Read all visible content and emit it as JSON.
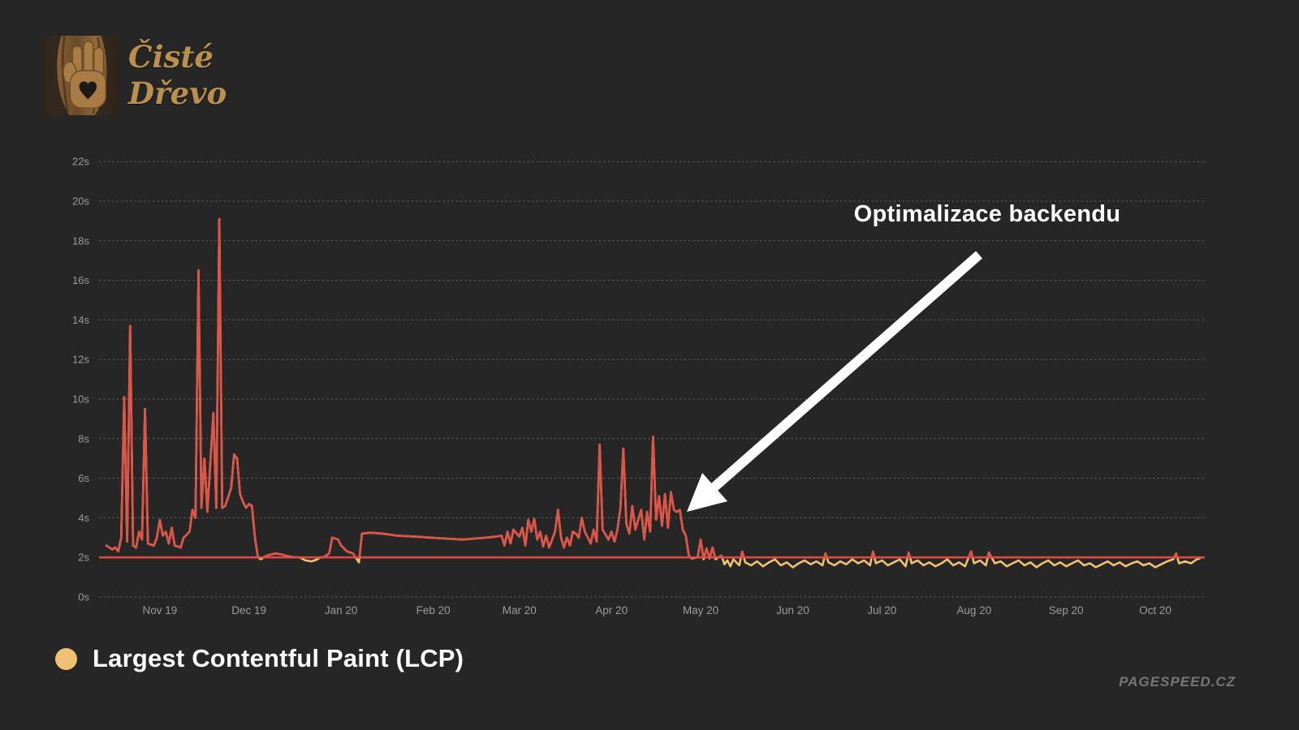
{
  "page": {
    "background": "#262626"
  },
  "logo": {
    "brand_line1": "Čisté",
    "brand_line2": "Dřevo"
  },
  "annotation": {
    "text": "Optimalizace backendu"
  },
  "legend": {
    "label": "Largest Contentful Paint (LCP)",
    "marker_color": "#f0c173"
  },
  "watermark": {
    "text": "PAGESPEED.CZ"
  },
  "chart_data": {
    "type": "line",
    "series_name": "Largest Contentful Paint (LCP)",
    "unit": "seconds",
    "ylim": [
      0,
      23
    ],
    "y_tick_values": [
      0,
      2,
      4,
      6,
      8,
      10,
      12,
      14,
      16,
      18,
      20,
      22
    ],
    "y_tick_labels": [
      "0s",
      "2s",
      "4s",
      "6s",
      "8s",
      "10s",
      "12s",
      "14s",
      "16s",
      "18s",
      "20s",
      "22s"
    ],
    "x_tick_labels": [
      "Nov 19",
      "Dec 19",
      "Jan 20",
      "Feb 20",
      "Mar 20",
      "Apr 20",
      "May 20",
      "Jun 20",
      "Jul 20",
      "Aug 20",
      "Sep 20",
      "Oct 20"
    ],
    "x_tick_days": [
      18,
      48,
      79,
      110,
      139,
      170,
      200,
      231,
      261,
      292,
      323,
      353
    ],
    "start_date": "2019-10-14",
    "end_date": "2020-10-16",
    "grid": "dotted-horizontal",
    "legend_position": "bottom-left",
    "threshold": {
      "value": 2,
      "color": "#e0483c"
    },
    "colors": {
      "above_threshold": "#df5348",
      "below_threshold": "#f0c173",
      "grid": "#9a9a9a",
      "tick_text": "#9b9b9b"
    },
    "points_format": "[days_since_start_date, seconds]",
    "points": [
      [
        0,
        2.6
      ],
      [
        2,
        2.4
      ],
      [
        3,
        2.5
      ],
      [
        4,
        2.3
      ],
      [
        5,
        3.0
      ],
      [
        6,
        10.1
      ],
      [
        7,
        2.8
      ],
      [
        8,
        13.7
      ],
      [
        9,
        2.6
      ],
      [
        10,
        2.5
      ],
      [
        11,
        3.3
      ],
      [
        12,
        2.9
      ],
      [
        13,
        9.5
      ],
      [
        14,
        2.7
      ],
      [
        16,
        2.6
      ],
      [
        17,
        3.0
      ],
      [
        18,
        3.9
      ],
      [
        19,
        3.1
      ],
      [
        20,
        3.3
      ],
      [
        21,
        2.7
      ],
      [
        22,
        3.5
      ],
      [
        23,
        2.6
      ],
      [
        25,
        2.5
      ],
      [
        26,
        3.0
      ],
      [
        28,
        3.3
      ],
      [
        29,
        4.4
      ],
      [
        30,
        4.0
      ],
      [
        31,
        16.5
      ],
      [
        32,
        4.5
      ],
      [
        33,
        7.0
      ],
      [
        34,
        4.3
      ],
      [
        36,
        9.3
      ],
      [
        37,
        4.5
      ],
      [
        38,
        19.1
      ],
      [
        39,
        4.5
      ],
      [
        40,
        4.6
      ],
      [
        42,
        5.5
      ],
      [
        43,
        7.2
      ],
      [
        44,
        7.0
      ],
      [
        45,
        5.2
      ],
      [
        46,
        4.8
      ],
      [
        47,
        4.5
      ],
      [
        48,
        4.7
      ],
      [
        49,
        4.6
      ],
      [
        50,
        3.0
      ],
      [
        51,
        2.0
      ],
      [
        52,
        1.9
      ],
      [
        54,
        2.1
      ],
      [
        57,
        2.2
      ],
      [
        59,
        2.15
      ],
      [
        60,
        2.1
      ],
      [
        63,
        2.0
      ],
      [
        65,
        2.0
      ],
      [
        67,
        1.85
      ],
      [
        69,
        1.8
      ],
      [
        71,
        1.9
      ],
      [
        72,
        2.0
      ],
      [
        73,
        2.0
      ],
      [
        75,
        2.2
      ],
      [
        76,
        3.0
      ],
      [
        78,
        2.9
      ],
      [
        79,
        2.6
      ],
      [
        81,
        2.3
      ],
      [
        83,
        2.2
      ],
      [
        85,
        1.75
      ],
      [
        86,
        3.2
      ],
      [
        89,
        3.25
      ],
      [
        93,
        3.2
      ],
      [
        98,
        3.1
      ],
      [
        104,
        3.05
      ],
      [
        109,
        3.0
      ],
      [
        114,
        2.95
      ],
      [
        120,
        2.9
      ],
      [
        124,
        2.95
      ],
      [
        128,
        3.0
      ],
      [
        131,
        3.05
      ],
      [
        133,
        3.1
      ],
      [
        134,
        2.6
      ],
      [
        135,
        3.3
      ],
      [
        136,
        2.7
      ],
      [
        137,
        3.4
      ],
      [
        139,
        3.05
      ],
      [
        140,
        3.5
      ],
      [
        141,
        2.6
      ],
      [
        142,
        3.9
      ],
      [
        143,
        3.3
      ],
      [
        144,
        3.95
      ],
      [
        145,
        2.9
      ],
      [
        146,
        3.3
      ],
      [
        147,
        2.55
      ],
      [
        148,
        3.1
      ],
      [
        149,
        2.5
      ],
      [
        151,
        3.3
      ],
      [
        152,
        4.4
      ],
      [
        153,
        3.0
      ],
      [
        154,
        2.5
      ],
      [
        155,
        3.0
      ],
      [
        156,
        2.6
      ],
      [
        157,
        3.3
      ],
      [
        158,
        3.2
      ],
      [
        159,
        3.0
      ],
      [
        160,
        4.0
      ],
      [
        161,
        3.3
      ],
      [
        163,
        2.7
      ],
      [
        164,
        3.4
      ],
      [
        165,
        2.8
      ],
      [
        166,
        7.7
      ],
      [
        167,
        3.4
      ],
      [
        169,
        2.9
      ],
      [
        170,
        3.3
      ],
      [
        171,
        2.8
      ],
      [
        172,
        3.4
      ],
      [
        173,
        4.5
      ],
      [
        174,
        7.5
      ],
      [
        175,
        3.7
      ],
      [
        176,
        3.2
      ],
      [
        177,
        4.6
      ],
      [
        178,
        3.4
      ],
      [
        180,
        4.4
      ],
      [
        181,
        2.9
      ],
      [
        182,
        4.3
      ],
      [
        183,
        3.3
      ],
      [
        184,
        8.1
      ],
      [
        185,
        3.9
      ],
      [
        186,
        5.1
      ],
      [
        187,
        3.6
      ],
      [
        188,
        5.2
      ],
      [
        189,
        3.5
      ],
      [
        190,
        5.3
      ],
      [
        191,
        4.4
      ],
      [
        192,
        4.3
      ],
      [
        193,
        4.4
      ],
      [
        194,
        3.4
      ],
      [
        195,
        3.1
      ],
      [
        196,
        2.1
      ],
      [
        197,
        1.95
      ],
      [
        199,
        2.0
      ],
      [
        200,
        2.9
      ],
      [
        201,
        1.9
      ],
      [
        202,
        2.45
      ],
      [
        203,
        1.95
      ],
      [
        204,
        2.5
      ],
      [
        205,
        1.9
      ],
      [
        207,
        2.1
      ],
      [
        208,
        1.65
      ],
      [
        209,
        1.85
      ],
      [
        210,
        1.55
      ],
      [
        211,
        1.9
      ],
      [
        213,
        1.6
      ],
      [
        214,
        2.3
      ],
      [
        215,
        1.75
      ],
      [
        217,
        1.6
      ],
      [
        219,
        1.8
      ],
      [
        221,
        1.55
      ],
      [
        223,
        1.75
      ],
      [
        225,
        1.9
      ],
      [
        227,
        1.6
      ],
      [
        229,
        1.75
      ],
      [
        231,
        1.5
      ],
      [
        233,
        1.7
      ],
      [
        235,
        1.85
      ],
      [
        237,
        1.65
      ],
      [
        239,
        1.8
      ],
      [
        241,
        1.6
      ],
      [
        242,
        2.2
      ],
      [
        243,
        1.75
      ],
      [
        245,
        1.6
      ],
      [
        247,
        1.8
      ],
      [
        249,
        1.65
      ],
      [
        251,
        1.9
      ],
      [
        253,
        1.7
      ],
      [
        255,
        1.85
      ],
      [
        257,
        1.6
      ],
      [
        258,
        2.3
      ],
      [
        259,
        1.7
      ],
      [
        261,
        1.85
      ],
      [
        263,
        1.6
      ],
      [
        265,
        1.75
      ],
      [
        267,
        1.9
      ],
      [
        269,
        1.55
      ],
      [
        270,
        2.25
      ],
      [
        271,
        1.7
      ],
      [
        273,
        1.85
      ],
      [
        275,
        1.6
      ],
      [
        277,
        1.75
      ],
      [
        279,
        1.55
      ],
      [
        281,
        1.7
      ],
      [
        283,
        1.9
      ],
      [
        285,
        1.6
      ],
      [
        287,
        1.75
      ],
      [
        289,
        1.55
      ],
      [
        291,
        2.3
      ],
      [
        292,
        1.7
      ],
      [
        294,
        1.85
      ],
      [
        296,
        1.6
      ],
      [
        297,
        2.25
      ],
      [
        299,
        1.7
      ],
      [
        301,
        1.8
      ],
      [
        303,
        1.55
      ],
      [
        305,
        1.7
      ],
      [
        307,
        1.85
      ],
      [
        309,
        1.6
      ],
      [
        311,
        1.75
      ],
      [
        313,
        1.5
      ],
      [
        315,
        1.7
      ],
      [
        317,
        1.85
      ],
      [
        319,
        1.6
      ],
      [
        321,
        1.75
      ],
      [
        323,
        1.55
      ],
      [
        325,
        1.7
      ],
      [
        327,
        1.85
      ],
      [
        329,
        1.6
      ],
      [
        331,
        1.7
      ],
      [
        333,
        1.5
      ],
      [
        335,
        1.65
      ],
      [
        337,
        1.8
      ],
      [
        339,
        1.6
      ],
      [
        341,
        1.75
      ],
      [
        343,
        1.55
      ],
      [
        345,
        1.7
      ],
      [
        347,
        1.8
      ],
      [
        349,
        1.6
      ],
      [
        351,
        1.7
      ],
      [
        353,
        1.5
      ],
      [
        355,
        1.65
      ],
      [
        357,
        1.8
      ],
      [
        359,
        1.9
      ],
      [
        360,
        2.2
      ],
      [
        361,
        1.7
      ],
      [
        363,
        1.8
      ],
      [
        365,
        1.7
      ],
      [
        367,
        1.9
      ],
      [
        368,
        1.95
      ]
    ],
    "annotations": [
      {
        "text": "Optimalizace backendu",
        "points_to_date": "2020-04-28",
        "arrow": true
      }
    ]
  }
}
